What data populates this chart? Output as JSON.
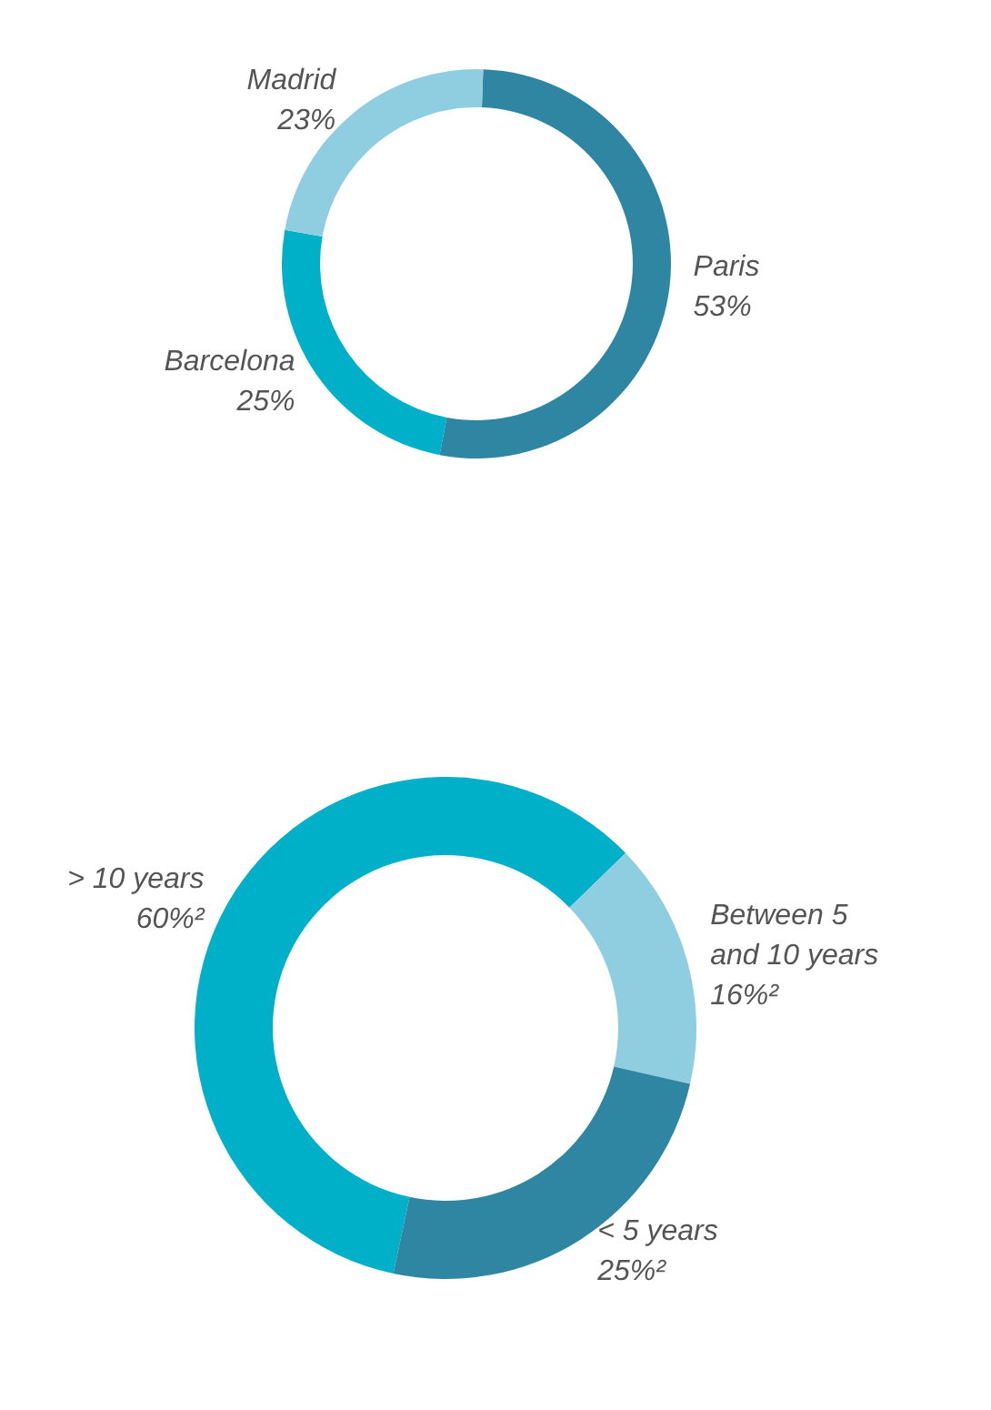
{
  "chart_data": [
    {
      "type": "donut",
      "categories": [
        "Paris",
        "Barcelona",
        "Madrid"
      ],
      "values": [
        53,
        25,
        23
      ],
      "colors": [
        "#2e86a3",
        "#00afc8",
        "#8fcde0"
      ],
      "value_labels": [
        "53%",
        "25%",
        "23%"
      ],
      "legend": false
    },
    {
      "type": "donut",
      "categories": [
        "> 10 years",
        "Between 5\nand 10 years",
        "< 5 years"
      ],
      "values": [
        60,
        16,
        25
      ],
      "colors": [
        "#00afc8",
        "#8fcde0",
        "#2e86a3"
      ],
      "value_labels": [
        "60%²",
        "16%²",
        "25%²"
      ],
      "legend": false
    }
  ]
}
